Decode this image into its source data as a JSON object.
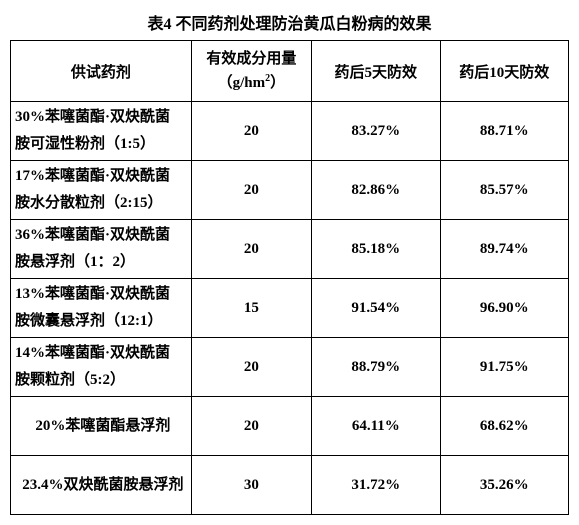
{
  "title": "表4 不同药剂处理防治黄瓜白粉病的效果",
  "headers": {
    "name": "供试药剂",
    "dose_l1": "有效成分用量",
    "dose_l2": "（g/hm",
    "dose_sup": "2",
    "dose_l2_end": "）",
    "day5": "药后5天防效",
    "day10": "药后10天防效"
  },
  "rows": [
    {
      "name_l1": "30%苯噻菌酯·双炔酰菌",
      "name_l2": "胺可湿性粉剂（1:5）",
      "dose": "20",
      "d5": "83.27%",
      "d10": "88.71%"
    },
    {
      "name_l1": "17%苯噻菌酯·双炔酰菌",
      "name_l2": "胺水分散粒剂（2:15）",
      "dose": "20",
      "d5": "82.86%",
      "d10": "85.57%"
    },
    {
      "name_l1": "36%苯噻菌酯·双炔酰菌",
      "name_l2": "胺悬浮剂（1：2）",
      "dose": "20",
      "d5": "85.18%",
      "d10": "89.74%"
    },
    {
      "name_l1": "13%苯噻菌酯·双炔酰菌",
      "name_l2": "胺微囊悬浮剂（12:1）",
      "dose": "15",
      "d5": "91.54%",
      "d10": "96.90%"
    },
    {
      "name_l1": "14%苯噻菌酯·双炔酰菌",
      "name_l2": "胺颗粒剂（5:2）",
      "dose": "20",
      "d5": "88.79%",
      "d10": "91.75%"
    },
    {
      "name_l1": "20%苯噻菌酯悬浮剂",
      "name_l2": "",
      "dose": "20",
      "d5": "64.11%",
      "d10": "68.62%"
    },
    {
      "name_l1": "23.4%双炔酰菌胺悬浮剂",
      "name_l2": "",
      "dose": "30",
      "d5": "31.72%",
      "d10": "35.26%"
    }
  ]
}
